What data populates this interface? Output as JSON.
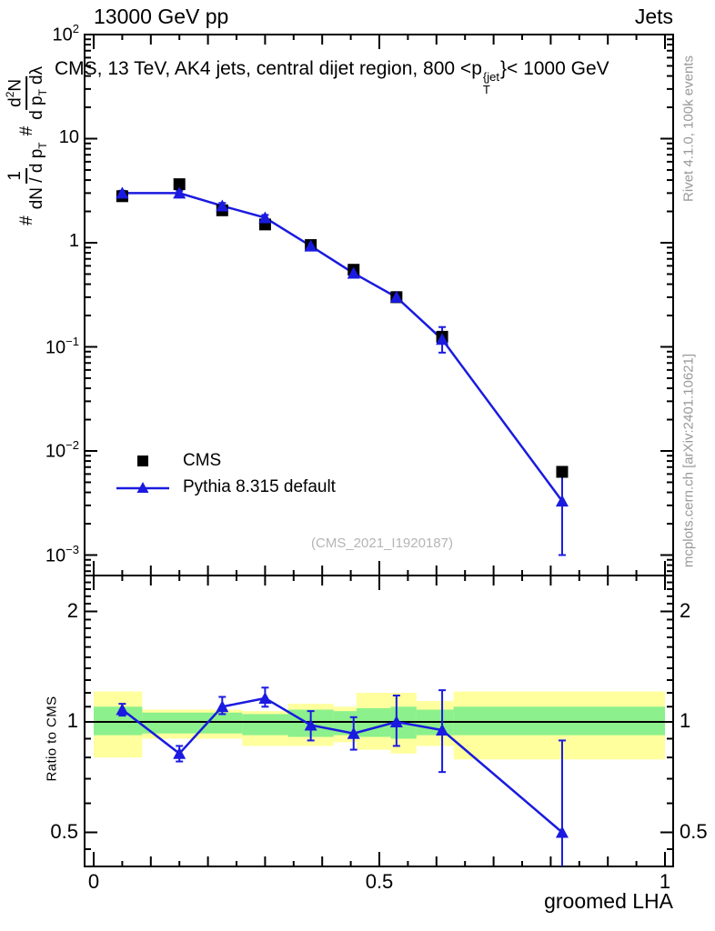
{
  "header": {
    "left": "13000 GeV pp",
    "right": "Jets"
  },
  "title": {
    "prefix": "CMS, 13 TeV, AK4 jets, central dijet region, 800 <p",
    "sup": "{jet",
    "sub": "T",
    "suffix": "}< 1000 GeV"
  },
  "ylabel": {
    "h1": "#",
    "num1": "1",
    "den1": "dN / d p",
    "den1_sub": "T",
    "h2": "#",
    "num2_a": "d",
    "num2_sup": "2",
    "num2_b": "N",
    "den2_a": "d p",
    "den2_sub": "T",
    "den2_b": "dλ"
  },
  "side_notes": {
    "rivet": "Rivet 4.1.0,  100k events",
    "mcplots": "mcplots.cern.ch [arXiv:2401.10621]"
  },
  "watermark": {
    "text": "(CMS_2021_I1920187)"
  },
  "legend": [
    {
      "label": "CMS",
      "marker": "square",
      "color": "#000000"
    },
    {
      "label": "Pythia 8.315 default",
      "marker": "triangle-line",
      "color": "#1a1ae0"
    }
  ],
  "colors": {
    "blue": "#1a1ae0",
    "yellow": "#ffff9e",
    "green": "#8cf08c",
    "gray_note": "#999999",
    "watermark": "#b5b5b5",
    "black": "#000000"
  },
  "chart_data": [
    {
      "id": "main",
      "type": "line",
      "title": "CMS, 13 TeV, AK4 jets, central dijet region, 800 < pT^jet < 1000 GeV",
      "ylog": true,
      "xlim": [
        -0.016,
        1.014
      ],
      "ylim": [
        0.00064,
        100
      ],
      "legend_position": "left-middle",
      "grid": false,
      "x": [
        0.05,
        0.15,
        0.225,
        0.3,
        0.38,
        0.455,
        0.53,
        0.61,
        0.82
      ],
      "series": [
        {
          "name": "CMS",
          "marker": "square",
          "color": "#000000",
          "values": [
            2.8,
            3.65,
            2.05,
            1.5,
            0.95,
            0.55,
            0.3,
            0.125,
            0.0063
          ]
        },
        {
          "name": "Pythia 8.315 default",
          "marker": "triangle",
          "color": "#1a1ae0",
          "values": [
            3.0,
            3.0,
            2.26,
            1.74,
            0.93,
            0.51,
            0.3,
            0.118,
            0.0033
          ],
          "err_lo": [
            2.85,
            2.85,
            2.12,
            1.64,
            0.86,
            0.465,
            0.27,
            0.088,
            0.001
          ],
          "err_hi": [
            3.16,
            3.16,
            2.41,
            1.85,
            1.01,
            0.56,
            0.335,
            0.155,
            0.0058
          ]
        }
      ],
      "yticks": [
        {
          "v": 100,
          "base": "10",
          "exp": "2"
        },
        {
          "v": 10,
          "base": "10",
          "exp": ""
        },
        {
          "v": 1,
          "base": "1",
          "exp": ""
        },
        {
          "v": 0.1,
          "base": "10",
          "exp": "−1"
        },
        {
          "v": 0.01,
          "base": "10",
          "exp": "−2"
        },
        {
          "v": 0.001,
          "base": "10",
          "exp": "−3"
        }
      ]
    },
    {
      "id": "ratio",
      "type": "line",
      "ylabel": "Ratio to CMS",
      "xlabel": "groomed LHA",
      "ylog": true,
      "xlim": [
        -0.016,
        1.014
      ],
      "ylim": [
        0.404,
        2.5
      ],
      "ref_line": 1,
      "x": [
        0.05,
        0.15,
        0.225,
        0.3,
        0.38,
        0.455,
        0.53,
        0.61,
        0.82
      ],
      "values": [
        1.08,
        0.82,
        1.1,
        1.16,
        0.98,
        0.93,
        1.0,
        0.95,
        0.5
      ],
      "err_lo": [
        1.04,
        0.78,
        1.05,
        1.1,
        0.89,
        0.84,
        0.86,
        0.73,
        0.404
      ],
      "err_hi": [
        1.12,
        0.86,
        1.17,
        1.24,
        1.07,
        1.03,
        1.18,
        1.22,
        0.89
      ],
      "bands": [
        {
          "x0": 0.0,
          "x1": 0.085,
          "outer": [
            0.8,
            1.21
          ],
          "inner": [
            0.92,
            1.1
          ]
        },
        {
          "x0": 0.085,
          "x1": 0.26,
          "outer": [
            0.9,
            1.08
          ],
          "inner": [
            0.93,
            1.06
          ]
        },
        {
          "x0": 0.26,
          "x1": 0.34,
          "outer": [
            0.86,
            1.07
          ],
          "inner": [
            0.92,
            1.05
          ]
        },
        {
          "x0": 0.34,
          "x1": 0.42,
          "outer": [
            0.86,
            1.12
          ],
          "inner": [
            0.91,
            1.08
          ]
        },
        {
          "x0": 0.42,
          "x1": 0.46,
          "outer": [
            0.88,
            1.1
          ],
          "inner": [
            0.92,
            1.07
          ]
        },
        {
          "x0": 0.46,
          "x1": 0.52,
          "outer": [
            0.84,
            1.2
          ],
          "inner": [
            0.91,
            1.09
          ]
        },
        {
          "x0": 0.52,
          "x1": 0.565,
          "outer": [
            0.82,
            1.2
          ],
          "inner": [
            0.9,
            1.1
          ]
        },
        {
          "x0": 0.565,
          "x1": 0.63,
          "outer": [
            0.86,
            1.14
          ],
          "inner": [
            0.92,
            1.08
          ]
        },
        {
          "x0": 0.63,
          "x1": 1.0,
          "outer": [
            0.79,
            1.21
          ],
          "inner": [
            0.92,
            1.1
          ]
        }
      ],
      "xticks": [
        {
          "v": 0,
          "label": "0"
        },
        {
          "v": 0.5,
          "label": "0.5"
        },
        {
          "v": 1,
          "label": "1"
        }
      ],
      "yticks": [
        {
          "v": 2,
          "label": "2"
        },
        {
          "v": 1,
          "label": "1"
        },
        {
          "v": 0.5,
          "label": "0.5"
        }
      ]
    }
  ]
}
